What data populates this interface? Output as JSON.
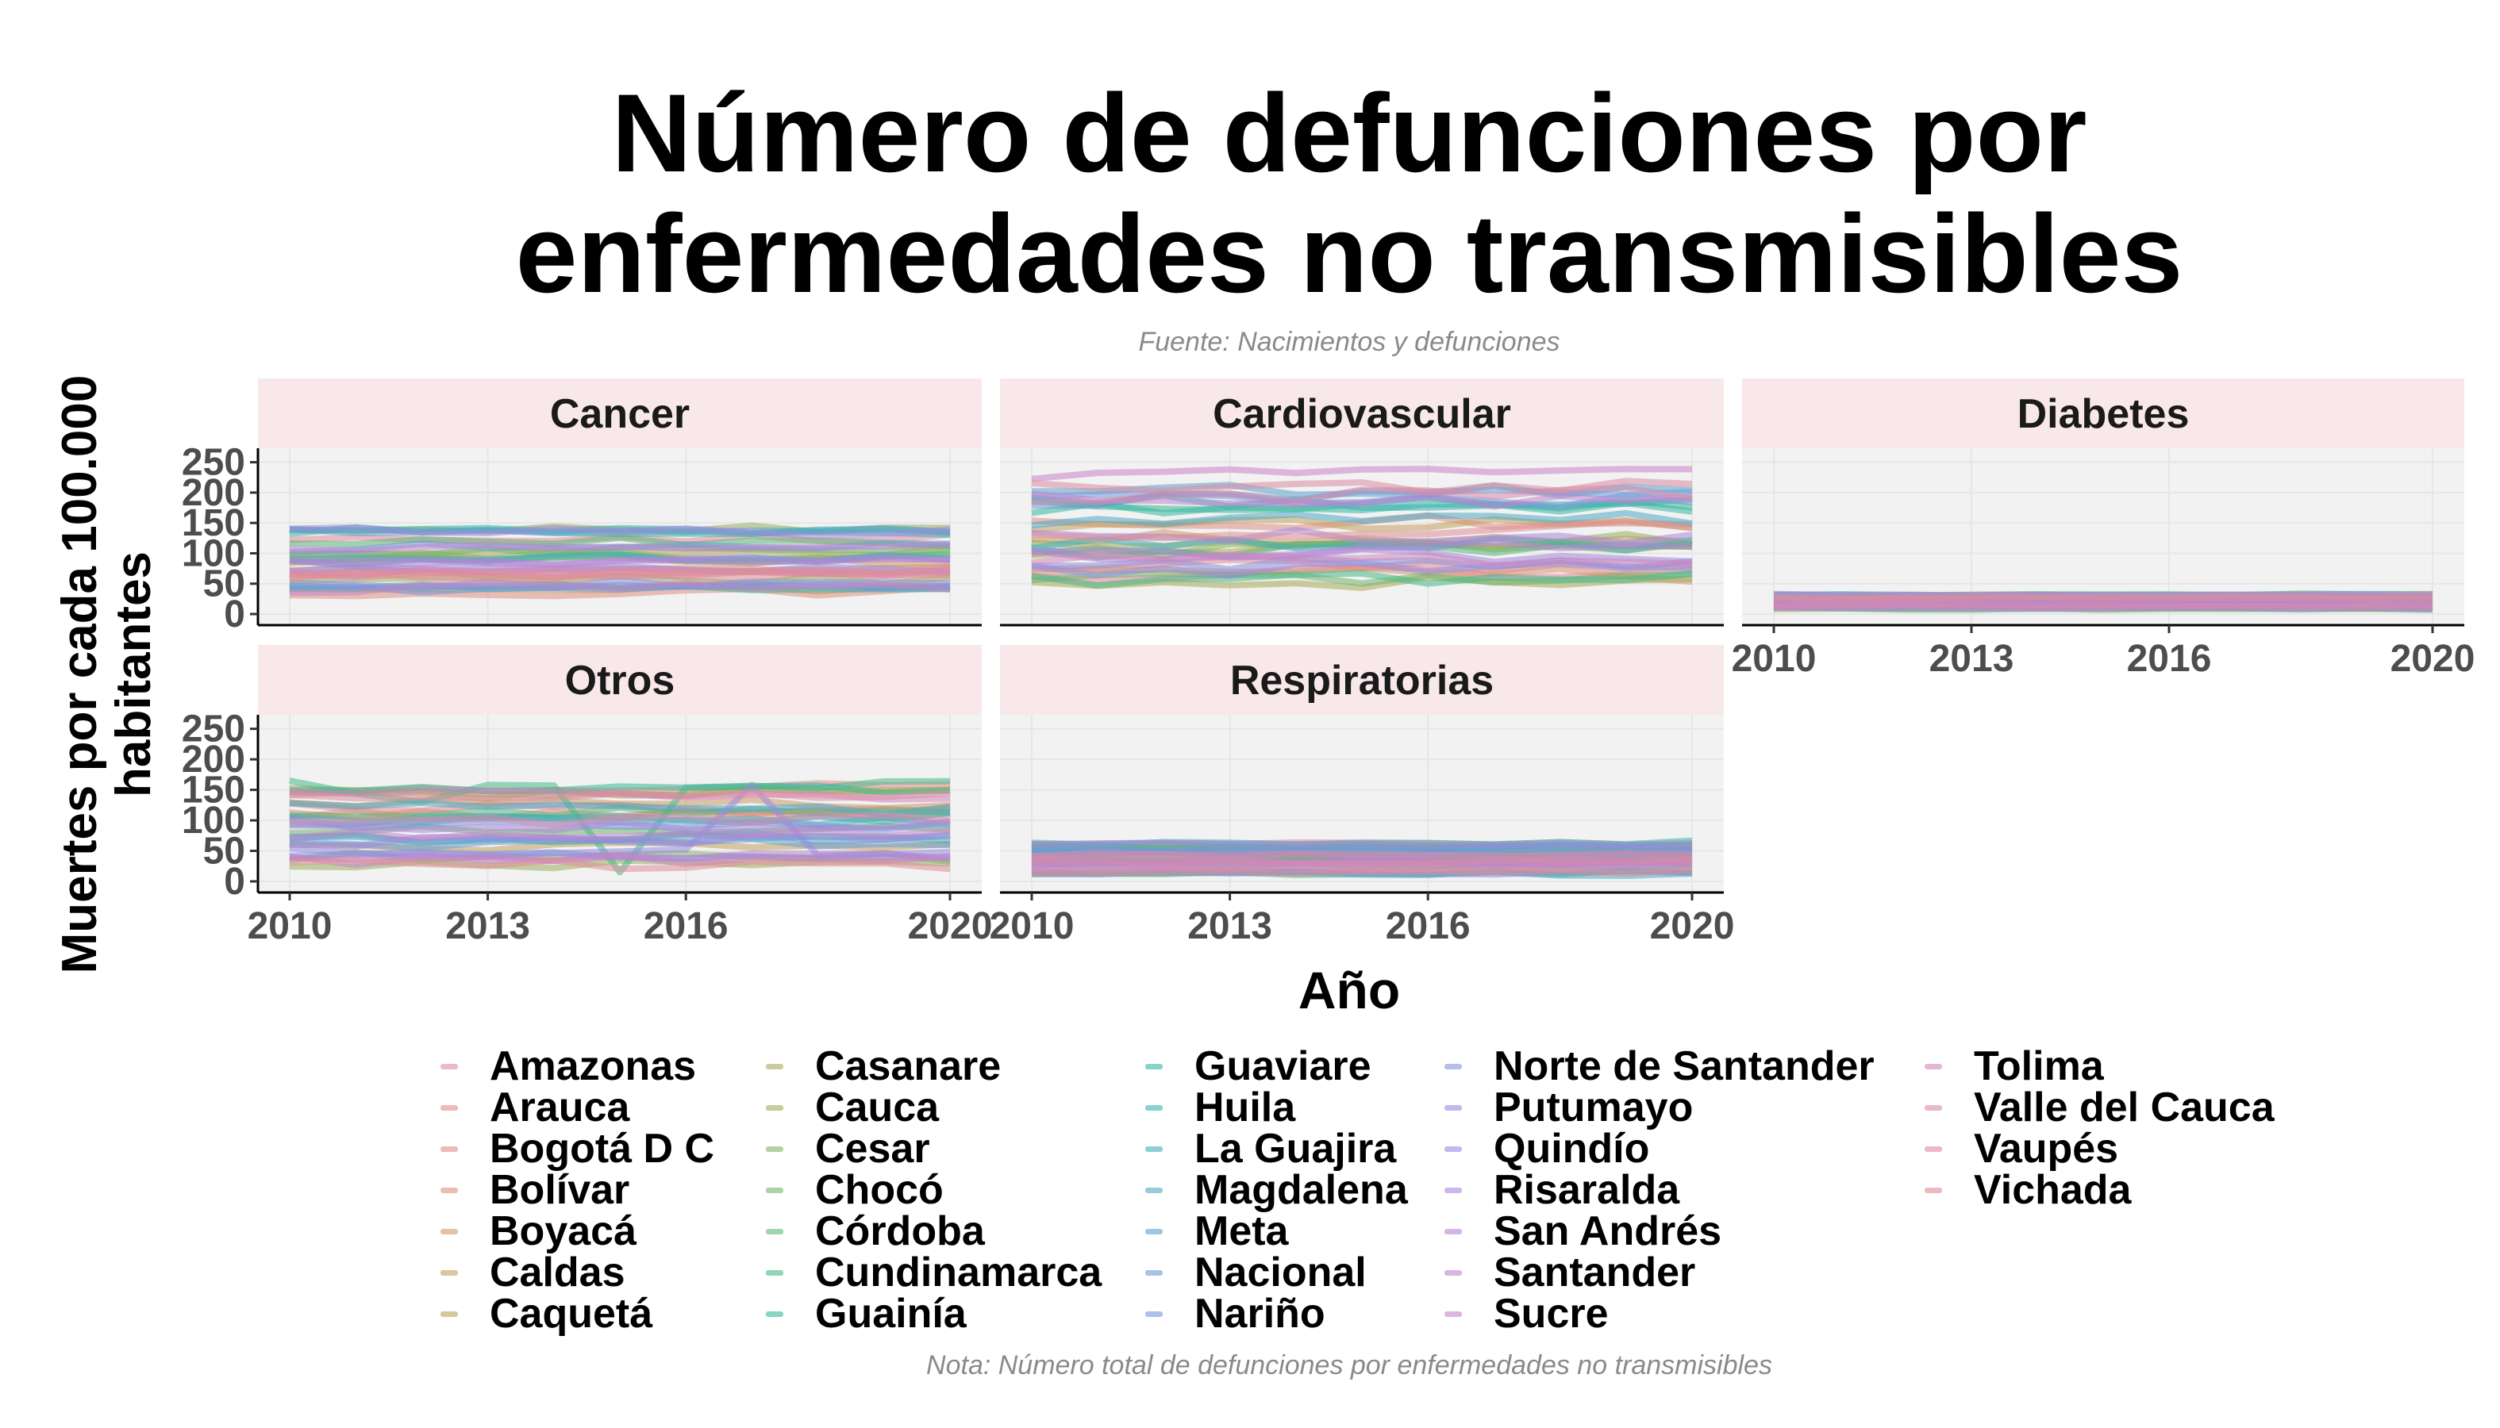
{
  "title_line1": "Número de defunciones por",
  "title_line2": "enfermedades no transmisibles",
  "subtitle": "Fuente: Nacimientos y defunciones",
  "caption": "Nota: Número total de defunciones por enfermedades no transmisibles",
  "chart_data": {
    "type": "line",
    "xlabel": "Año",
    "ylabel": "Muertes por cada 100.000 habitantes",
    "x": [
      2010,
      2011,
      2012,
      2013,
      2014,
      2015,
      2016,
      2017,
      2018,
      2019,
      2020
    ],
    "xticks": [
      "2010",
      "2013",
      "2016",
      "2020"
    ],
    "yticks": [
      "0",
      "50",
      "100",
      "150",
      "200",
      "250"
    ],
    "ylim": [
      0,
      260
    ],
    "grid": true,
    "legend_position": "bottom",
    "facets": [
      {
        "name": "Cancer",
        "range": [
          20,
          155
        ],
        "median": 85
      },
      {
        "name": "Cardiovascular",
        "range": [
          30,
          245
        ],
        "median": 130
      },
      {
        "name": "Diabetes",
        "range": [
          5,
          35
        ],
        "median": 18
      },
      {
        "name": "Otros",
        "range": [
          10,
          165
        ],
        "median": 65
      },
      {
        "name": "Respiratorias",
        "range": [
          2,
          70
        ],
        "median": 30
      }
    ],
    "series": [
      {
        "name": "Amazonas"
      },
      {
        "name": "Arauca"
      },
      {
        "name": "Bogotá D C"
      },
      {
        "name": "Bolívar"
      },
      {
        "name": "Boyacá"
      },
      {
        "name": "Caldas"
      },
      {
        "name": "Caquetá"
      },
      {
        "name": "Casanare"
      },
      {
        "name": "Cauca"
      },
      {
        "name": "Cesar"
      },
      {
        "name": "Chocó"
      },
      {
        "name": "Córdoba"
      },
      {
        "name": "Cundinamarca"
      },
      {
        "name": "Guainía"
      },
      {
        "name": "Guaviare"
      },
      {
        "name": "Huila"
      },
      {
        "name": "La Guajira"
      },
      {
        "name": "Magdalena"
      },
      {
        "name": "Meta"
      },
      {
        "name": "Nacional"
      },
      {
        "name": "Nariño"
      },
      {
        "name": "Norte de Santander"
      },
      {
        "name": "Putumayo"
      },
      {
        "name": "Quindío"
      },
      {
        "name": "Risaralda"
      },
      {
        "name": "San Andrés"
      },
      {
        "name": "Santander"
      },
      {
        "name": "Sucre"
      },
      {
        "name": "Tolima"
      },
      {
        "name": "Valle del Cauca"
      },
      {
        "name": "Vaupés"
      },
      {
        "name": "Vichada"
      }
    ],
    "colors": [
      "#E58A9E",
      "#E38C92",
      "#E08F85",
      "#D99476",
      "#CE9B68",
      "#C3A05F",
      "#B7A55A",
      "#A8AA58",
      "#99AE5C",
      "#87B264",
      "#73B56E",
      "#5DB77A",
      "#48B888",
      "#3BB896",
      "#36B6A3",
      "#3AB3B0",
      "#43AFBB",
      "#4FAAC5",
      "#5CA4CE",
      "#6A9ED5",
      "#7898DA",
      "#8692DD",
      "#938DDF",
      "#A089DF",
      "#AC86DC",
      "#B784D6",
      "#C083CF",
      "#C984C6",
      "#D087BB",
      "#D68AAF",
      "#DB8DA2",
      "#DE8E95"
    ]
  }
}
